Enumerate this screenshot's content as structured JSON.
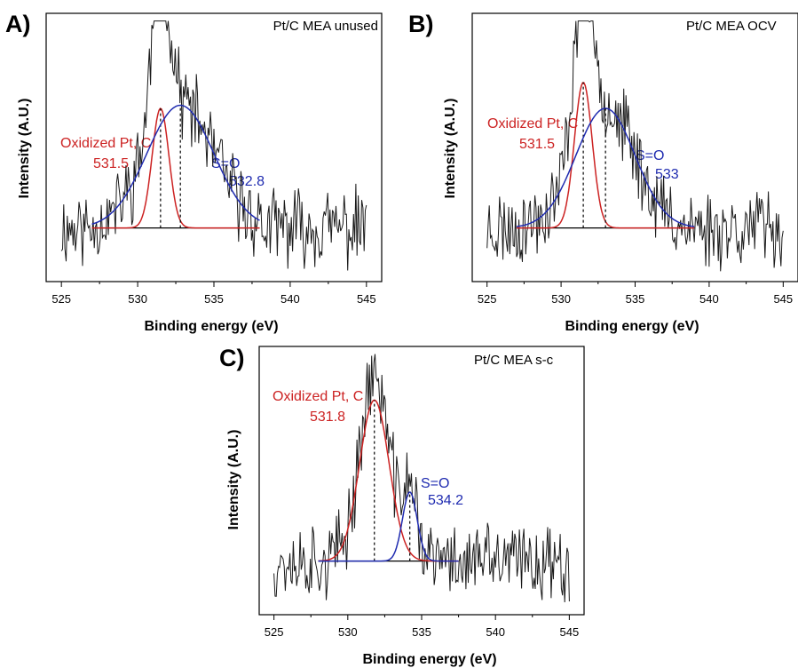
{
  "figure": {
    "xlabel": "Binding energy (eV)",
    "ylabel": "Intensity (A.U.)",
    "colors": {
      "raw": "#1a1a1a",
      "oxidized": "#cc2222",
      "so": "#1f2bb0",
      "baseline": "#000000"
    }
  },
  "chart_data": [
    {
      "type": "line",
      "panel": "A)",
      "title": "Pt/C MEA unused",
      "xlabel": "Binding energy (eV)",
      "ylabel": "Intensity (A.U.)",
      "xlim": [
        524,
        546
      ],
      "xticks": [
        525,
        530,
        535,
        540,
        545
      ],
      "ylim": [
        -0.35,
        1.4
      ],
      "baseline_range": [
        527,
        538
      ],
      "series": [
        {
          "role": "raw",
          "peak_x": 531.5,
          "main_amp": 1.1,
          "main_w": 0.7,
          "seed": 11
        },
        {
          "role": "oxidized",
          "center": 531.5,
          "amplitude": 0.78,
          "width": 0.55
        },
        {
          "role": "so",
          "center": 532.8,
          "amplitude": 0.8,
          "width": 2.2
        }
      ],
      "annotations": [
        {
          "label": "Oxidized Pt, C",
          "value": "531.5",
          "role": "oxidized"
        },
        {
          "label": "S=O",
          "value": "532.8",
          "role": "so"
        }
      ]
    },
    {
      "type": "line",
      "panel": "B)",
      "title": "Pt/C MEA OCV",
      "xlabel": "Binding energy (eV)",
      "ylabel": "Intensity (A.U.)",
      "xlim": [
        524,
        546
      ],
      "xticks": [
        525,
        530,
        535,
        540,
        545
      ],
      "ylim": [
        -0.35,
        1.4
      ],
      "baseline_range": [
        527,
        539
      ],
      "series": [
        {
          "role": "raw",
          "peak_x": 531.5,
          "main_amp": 1.15,
          "main_w": 0.8,
          "seed": 23
        },
        {
          "role": "oxidized",
          "center": 531.5,
          "amplitude": 0.95,
          "width": 0.6
        },
        {
          "role": "so",
          "center": 533.0,
          "amplitude": 0.78,
          "width": 2.0
        }
      ],
      "annotations": [
        {
          "label": "Oxidized Pt, C",
          "value": "531.5",
          "role": "oxidized"
        },
        {
          "label": "S=O",
          "value": "533",
          "role": "so"
        }
      ]
    },
    {
      "type": "line",
      "panel": "C)",
      "title": "Pt/C MEA s-c",
      "xlabel": "Binding energy (eV)",
      "ylabel": "Intensity (A.U.)",
      "xlim": [
        524,
        546
      ],
      "xticks": [
        525,
        530,
        535,
        540,
        545
      ],
      "ylim": [
        -0.35,
        1.4
      ],
      "baseline_range": [
        528,
        537.5
      ],
      "series": [
        {
          "role": "raw",
          "peak_x": 531.8,
          "main_amp": 1.05,
          "main_w": 0.9,
          "seed": 37
        },
        {
          "role": "oxidized",
          "center": 531.8,
          "amplitude": 1.05,
          "width": 1.0
        },
        {
          "role": "so",
          "center": 534.2,
          "amplitude": 0.45,
          "width": 0.5
        }
      ],
      "annotations": [
        {
          "label": "Oxidized Pt, C",
          "value": "531.8",
          "role": "oxidized"
        },
        {
          "label": "S=O",
          "value": "534.2",
          "role": "so"
        }
      ]
    }
  ]
}
